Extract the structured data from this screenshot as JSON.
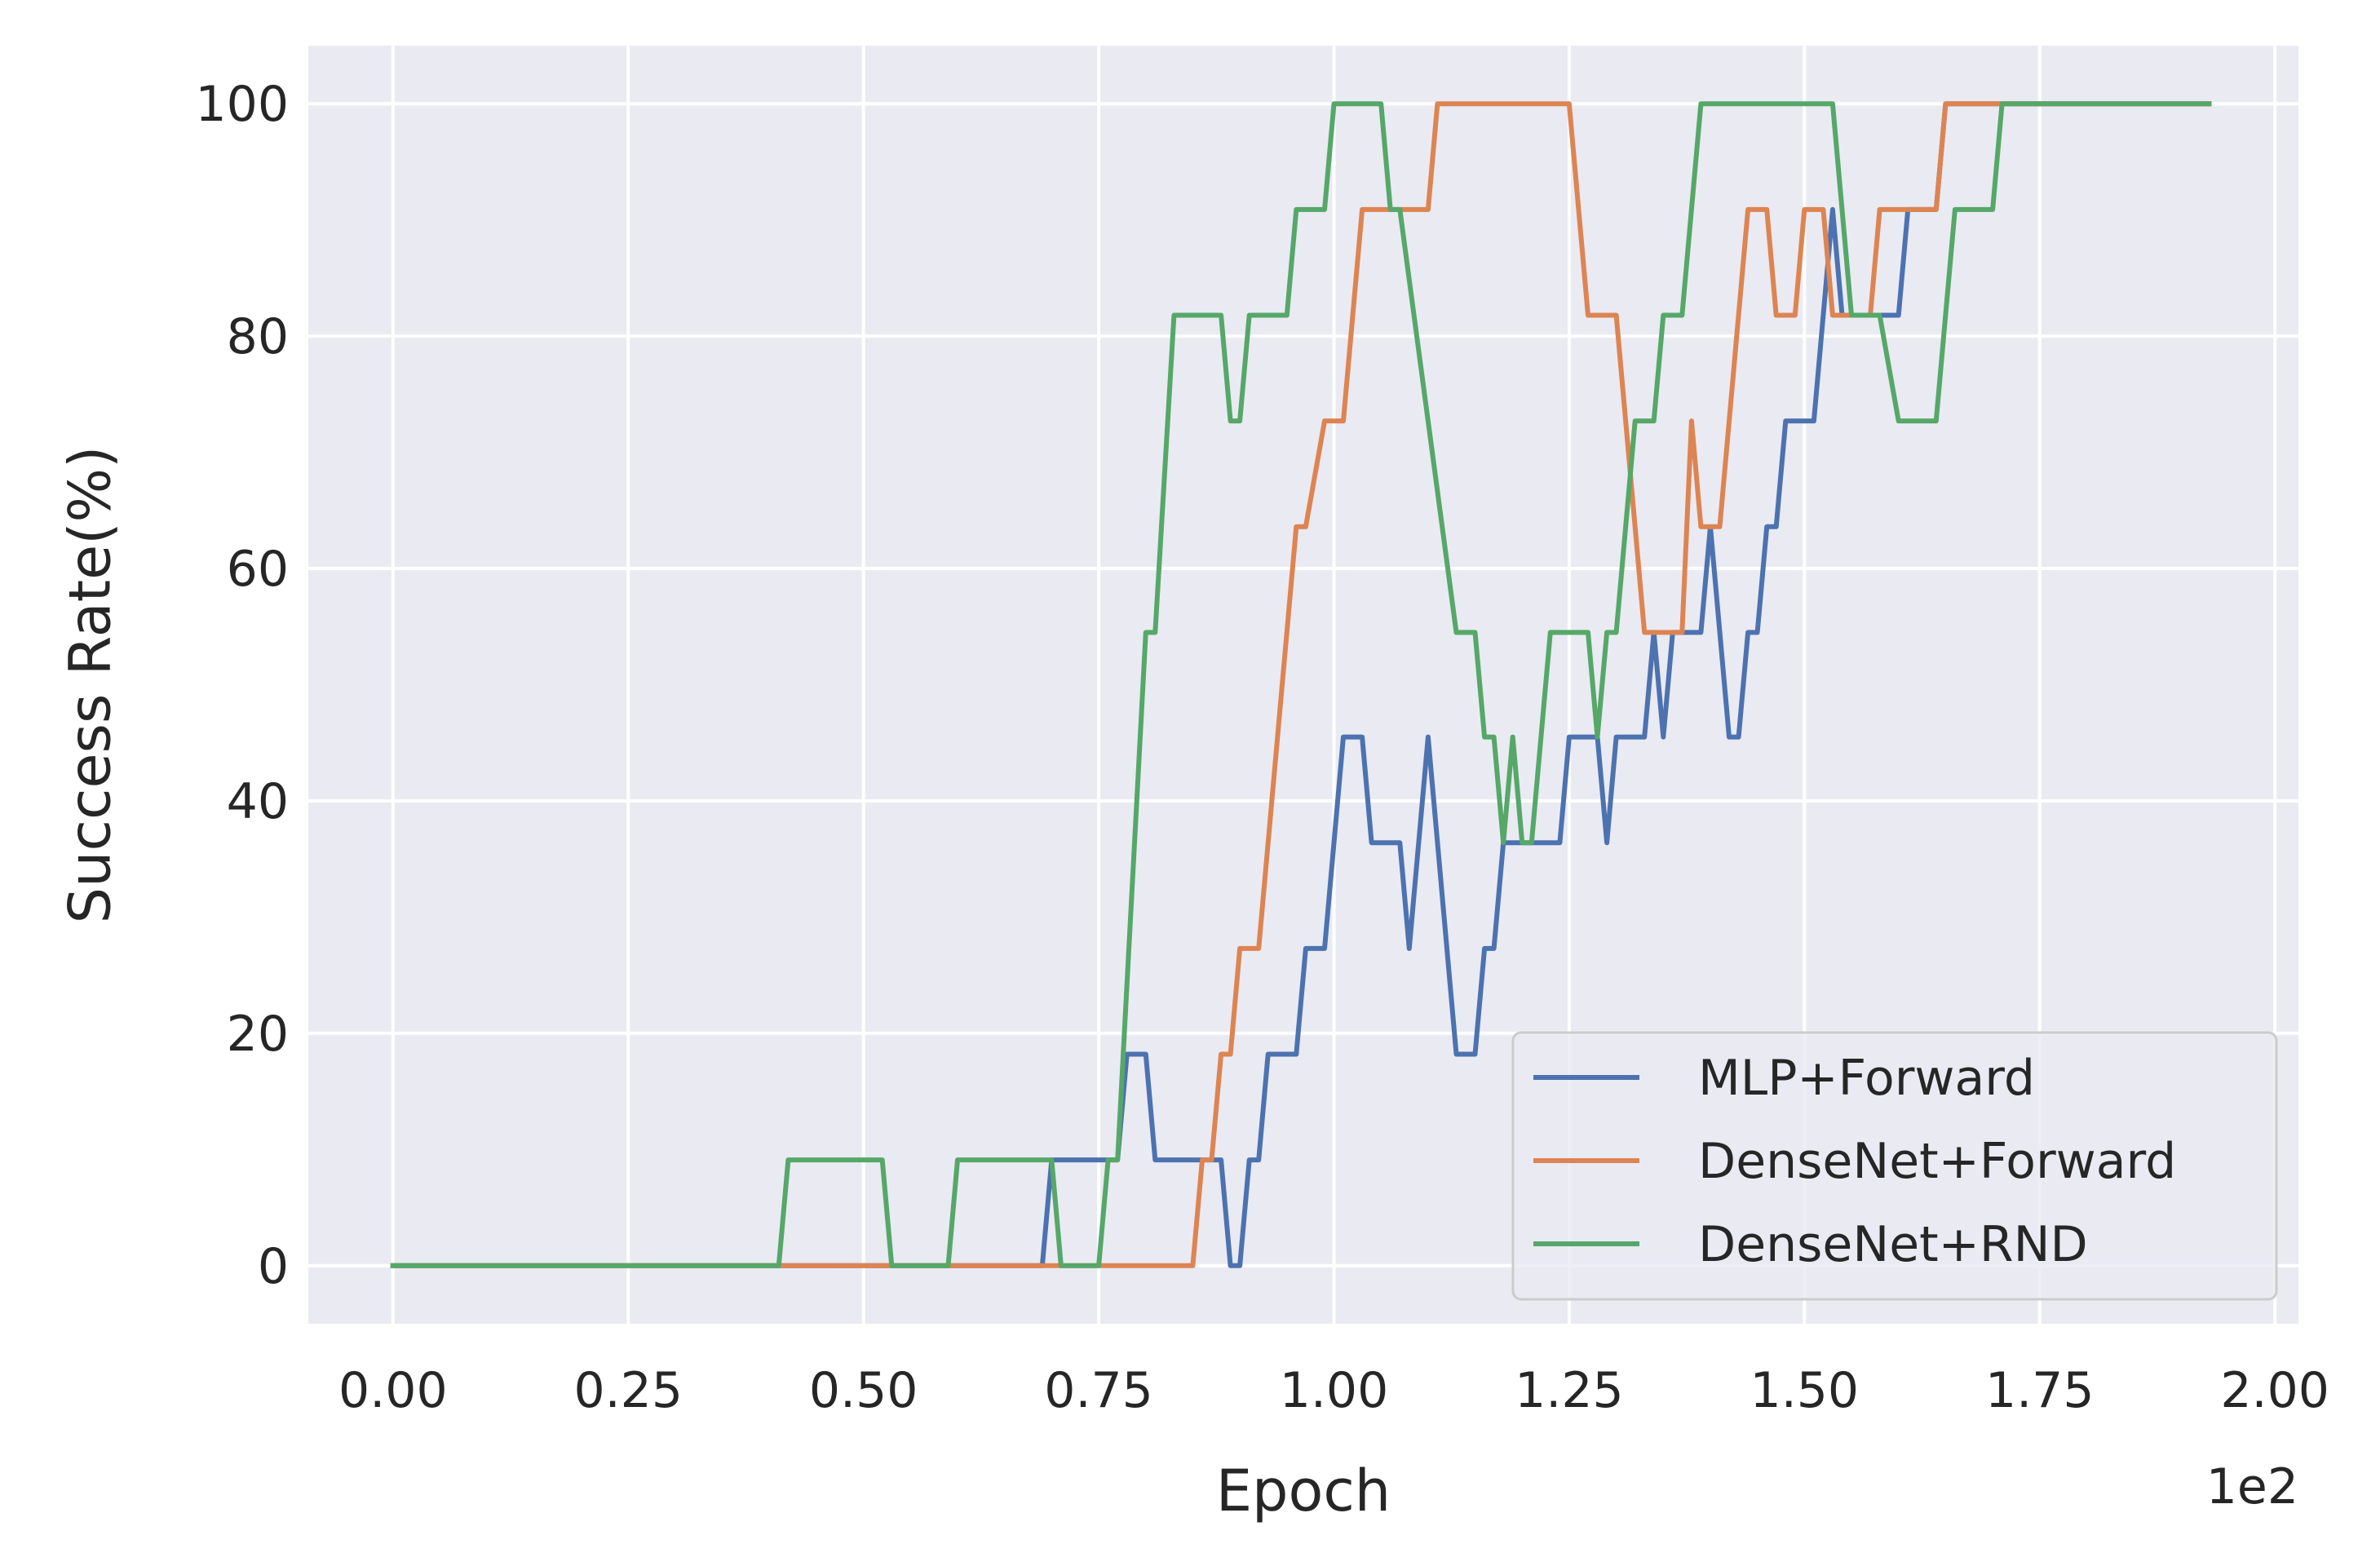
{
  "chart_data": {
    "type": "line",
    "title": "",
    "xlabel": "Epoch",
    "ylabel": "Success Rate(%)",
    "x_offset_text": "1e2",
    "xlim": [
      -0.09,
      2.025
    ],
    "ylim": [
      -5,
      105
    ],
    "xticks": [
      0.0,
      0.25,
      0.5,
      0.75,
      1.0,
      1.25,
      1.5,
      1.75,
      2.0
    ],
    "xtick_labels": [
      "0.00",
      "0.25",
      "0.50",
      "0.75",
      "1.00",
      "1.25",
      "1.50",
      "1.75",
      "2.00"
    ],
    "yticks": [
      0,
      20,
      40,
      60,
      80,
      100
    ],
    "ytick_labels": [
      "0",
      "20",
      "40",
      "60",
      "80",
      "100"
    ],
    "grid": true,
    "legend_position": "lower-right",
    "series": [
      {
        "name": "MLP+Forward",
        "color": "#4c72b0",
        "points": [
          [
            0,
            0
          ],
          [
            0.69,
            0
          ],
          [
            0.7,
            9.1
          ],
          [
            0.77,
            9.1
          ],
          [
            0.78,
            18.2
          ],
          [
            0.8,
            18.2
          ],
          [
            0.81,
            9.1
          ],
          [
            0.87,
            9.1
          ],
          [
            0.88,
            9.1
          ],
          [
            0.89,
            0
          ],
          [
            0.9,
            0
          ],
          [
            0.91,
            9.1
          ],
          [
            0.92,
            9.1
          ],
          [
            0.93,
            18.2
          ],
          [
            0.96,
            18.2
          ],
          [
            0.97,
            27.3
          ],
          [
            0.99,
            27.3
          ],
          [
            1.01,
            45.5
          ],
          [
            1.03,
            45.5
          ],
          [
            1.04,
            36.4
          ],
          [
            1.07,
            36.4
          ],
          [
            1.08,
            27.3
          ],
          [
            1.1,
            45.5
          ],
          [
            1.13,
            18.2
          ],
          [
            1.15,
            18.2
          ],
          [
            1.16,
            27.3
          ],
          [
            1.17,
            27.3
          ],
          [
            1.18,
            36.4
          ],
          [
            1.24,
            36.4
          ],
          [
            1.25,
            45.5
          ],
          [
            1.28,
            45.5
          ],
          [
            1.29,
            36.4
          ],
          [
            1.3,
            45.5
          ],
          [
            1.33,
            45.5
          ],
          [
            1.34,
            54.5
          ],
          [
            1.35,
            45.5
          ],
          [
            1.36,
            54.5
          ],
          [
            1.39,
            54.5
          ],
          [
            1.4,
            63.6
          ],
          [
            1.42,
            45.5
          ],
          [
            1.43,
            45.5
          ],
          [
            1.44,
            54.5
          ],
          [
            1.45,
            54.5
          ],
          [
            1.46,
            63.6
          ],
          [
            1.47,
            63.6
          ],
          [
            1.48,
            72.7
          ],
          [
            1.51,
            72.7
          ],
          [
            1.53,
            90.9
          ],
          [
            1.54,
            81.8
          ],
          [
            1.6,
            81.8
          ],
          [
            1.61,
            90.9
          ],
          [
            1.64,
            90.9
          ],
          [
            1.65,
            100
          ],
          [
            1.93,
            100
          ]
        ]
      },
      {
        "name": "DenseNet+Forward",
        "color": "#dd8452",
        "points": [
          [
            0,
            0
          ],
          [
            0.85,
            0
          ],
          [
            0.86,
            9.1
          ],
          [
            0.87,
            9.1
          ],
          [
            0.88,
            18.2
          ],
          [
            0.89,
            18.2
          ],
          [
            0.9,
            27.3
          ],
          [
            0.92,
            27.3
          ],
          [
            0.96,
            63.6
          ],
          [
            0.97,
            63.6
          ],
          [
            0.99,
            72.7
          ],
          [
            1.01,
            72.7
          ],
          [
            1.03,
            90.9
          ],
          [
            1.1,
            90.9
          ],
          [
            1.11,
            100
          ],
          [
            1.25,
            100
          ],
          [
            1.27,
            81.8
          ],
          [
            1.3,
            81.8
          ],
          [
            1.33,
            54.5
          ],
          [
            1.37,
            54.5
          ],
          [
            1.38,
            72.7
          ],
          [
            1.39,
            63.6
          ],
          [
            1.41,
            63.6
          ],
          [
            1.44,
            90.9
          ],
          [
            1.46,
            90.9
          ],
          [
            1.47,
            81.8
          ],
          [
            1.49,
            81.8
          ],
          [
            1.5,
            90.9
          ],
          [
            1.52,
            90.9
          ],
          [
            1.53,
            81.8
          ],
          [
            1.57,
            81.8
          ],
          [
            1.58,
            90.9
          ],
          [
            1.64,
            90.9
          ],
          [
            1.65,
            100
          ],
          [
            1.93,
            100
          ]
        ]
      },
      {
        "name": "DenseNet+RND",
        "color": "#55a868",
        "points": [
          [
            0,
            0
          ],
          [
            0.41,
            0
          ],
          [
            0.42,
            9.1
          ],
          [
            0.52,
            9.1
          ],
          [
            0.53,
            0
          ],
          [
            0.59,
            0
          ],
          [
            0.6,
            9.1
          ],
          [
            0.7,
            9.1
          ],
          [
            0.71,
            0
          ],
          [
            0.75,
            0
          ],
          [
            0.76,
            9.1
          ],
          [
            0.77,
            9.1
          ],
          [
            0.8,
            54.5
          ],
          [
            0.81,
            54.5
          ],
          [
            0.83,
            81.8
          ],
          [
            0.88,
            81.8
          ],
          [
            0.89,
            72.7
          ],
          [
            0.9,
            72.7
          ],
          [
            0.91,
            81.8
          ],
          [
            0.95,
            81.8
          ],
          [
            0.96,
            90.9
          ],
          [
            0.99,
            90.9
          ],
          [
            1.0,
            100
          ],
          [
            1.05,
            100
          ],
          [
            1.06,
            90.9
          ],
          [
            1.07,
            90.9
          ],
          [
            1.13,
            54.5
          ],
          [
            1.15,
            54.5
          ],
          [
            1.16,
            45.5
          ],
          [
            1.17,
            45.5
          ],
          [
            1.18,
            36.4
          ],
          [
            1.19,
            45.5
          ],
          [
            1.2,
            36.4
          ],
          [
            1.21,
            36.4
          ],
          [
            1.23,
            54.5
          ],
          [
            1.27,
            54.5
          ],
          [
            1.28,
            45.5
          ],
          [
            1.29,
            54.5
          ],
          [
            1.3,
            54.5
          ],
          [
            1.32,
            72.7
          ],
          [
            1.34,
            72.7
          ],
          [
            1.35,
            81.8
          ],
          [
            1.37,
            81.8
          ],
          [
            1.39,
            100
          ],
          [
            1.46,
            100
          ],
          [
            1.5,
            100
          ],
          [
            1.53,
            100
          ],
          [
            1.55,
            81.8
          ],
          [
            1.58,
            81.8
          ],
          [
            1.6,
            72.7
          ],
          [
            1.64,
            72.7
          ],
          [
            1.66,
            90.9
          ],
          [
            1.7,
            90.9
          ],
          [
            1.71,
            100
          ],
          [
            1.93,
            100
          ]
        ]
      }
    ]
  }
}
